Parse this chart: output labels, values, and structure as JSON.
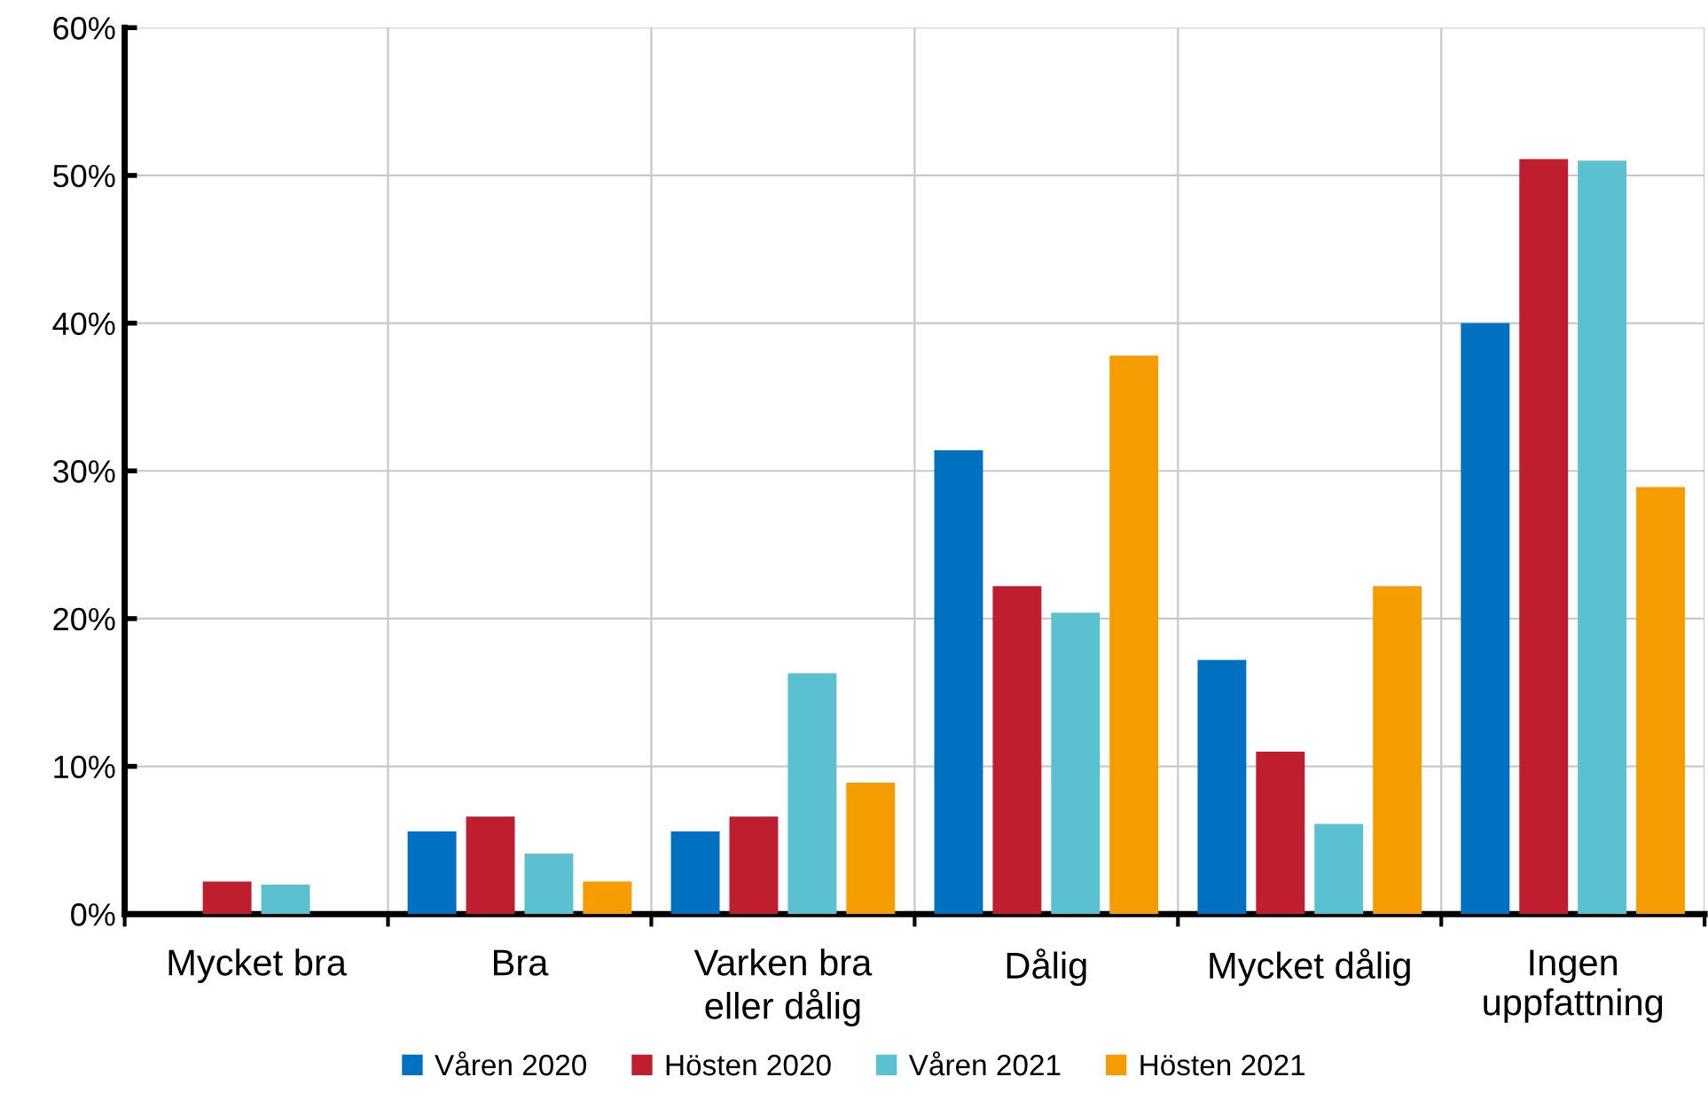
{
  "chart_data": {
    "type": "bar",
    "categories": [
      "Mycket bra",
      "Bra",
      "Varken bra\neller dålig",
      "Dålig",
      "Mycket dålig",
      "Ingen\nuppfattning"
    ],
    "series": [
      {
        "name": "Våren 2020",
        "color": "#0070c0",
        "values": [
          0,
          5.6,
          5.6,
          31.4,
          17.2,
          40.0
        ]
      },
      {
        "name": "Hösten 2020",
        "color": "#be1e2d",
        "values": [
          2.2,
          6.6,
          6.6,
          22.2,
          11.0,
          51.1
        ]
      },
      {
        "name": "Våren 2021",
        "color": "#5bc0cf",
        "values": [
          2.0,
          4.1,
          16.3,
          20.4,
          6.1,
          51.0
        ]
      },
      {
        "name": "Hösten 2021",
        "color": "#f59c00",
        "values": [
          0,
          2.2,
          8.9,
          37.8,
          22.2,
          28.9
        ]
      }
    ],
    "ylim": [
      0,
      60
    ],
    "yticks": [
      {
        "value": 0,
        "label": "0%"
      },
      {
        "value": 10,
        "label": "10%"
      },
      {
        "value": 20,
        "label": "20%"
      },
      {
        "value": 30,
        "label": "30%"
      },
      {
        "value": 40,
        "label": "40%"
      },
      {
        "value": 50,
        "label": "50%"
      },
      {
        "value": 60,
        "label": "60%"
      }
    ],
    "grid": true,
    "legend": "bottom"
  }
}
